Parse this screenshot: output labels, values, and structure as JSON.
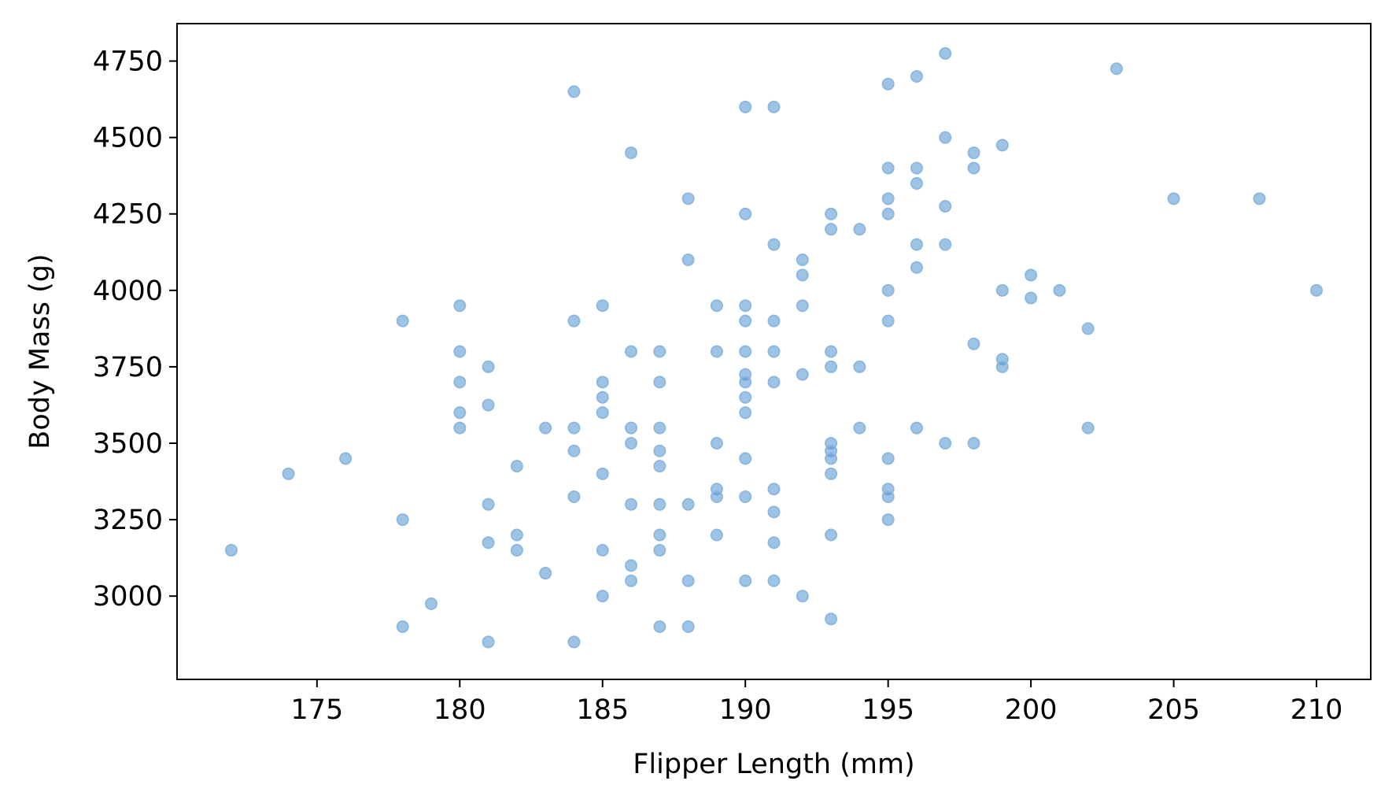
{
  "chart_data": {
    "type": "scatter",
    "title": "",
    "xlabel": "Flipper Length (mm)",
    "ylabel": "Body Mass (g)",
    "xlim": [
      170.1,
      211.9
    ],
    "ylim": [
      2727.5,
      4872.5
    ],
    "xticks": [
      175,
      180,
      185,
      190,
      195,
      200,
      205,
      210
    ],
    "yticks": [
      3000,
      3250,
      3500,
      3750,
      4000,
      4250,
      4500,
      4750
    ],
    "grid": false,
    "legend": "none",
    "colors": {
      "marker_fill": "#5b9bd5",
      "marker_edge": "#8fb8dd"
    },
    "points": [
      [
        172,
        3150
      ],
      [
        174,
        3400
      ],
      [
        176,
        3450
      ],
      [
        178,
        3900
      ],
      [
        178,
        3250
      ],
      [
        178,
        2900
      ],
      [
        179,
        2975
      ],
      [
        180,
        3950
      ],
      [
        180,
        3800
      ],
      [
        180,
        3700
      ],
      [
        180,
        3600
      ],
      [
        180,
        3550
      ],
      [
        181,
        3750
      ],
      [
        181,
        3625
      ],
      [
        181,
        3300
      ],
      [
        181,
        3175
      ],
      [
        181,
        2850
      ],
      [
        182,
        3425
      ],
      [
        182,
        3200
      ],
      [
        182,
        3150
      ],
      [
        183,
        3550
      ],
      [
        183,
        3075
      ],
      [
        184,
        4650
      ],
      [
        184,
        3900
      ],
      [
        184,
        3550
      ],
      [
        184,
        3475
      ],
      [
        184,
        3325
      ],
      [
        184,
        2850
      ],
      [
        185,
        3950
      ],
      [
        185,
        3700
      ],
      [
        185,
        3650
      ],
      [
        185,
        3600
      ],
      [
        185,
        3400
      ],
      [
        185,
        3150
      ],
      [
        185,
        3000
      ],
      [
        186,
        4450
      ],
      [
        186,
        3800
      ],
      [
        186,
        3550
      ],
      [
        186,
        3500
      ],
      [
        186,
        3300
      ],
      [
        186,
        3100
      ],
      [
        186,
        3050
      ],
      [
        187,
        3800
      ],
      [
        187,
        3700
      ],
      [
        187,
        3550
      ],
      [
        187,
        3475
      ],
      [
        187,
        3425
      ],
      [
        187,
        3300
      ],
      [
        187,
        3200
      ],
      [
        187,
        3150
      ],
      [
        187,
        2900
      ],
      [
        188,
        4300
      ],
      [
        188,
        4100
      ],
      [
        188,
        3300
      ],
      [
        188,
        3050
      ],
      [
        188,
        2900
      ],
      [
        189,
        3950
      ],
      [
        189,
        3800
      ],
      [
        189,
        3500
      ],
      [
        189,
        3350
      ],
      [
        189,
        3325
      ],
      [
        189,
        3200
      ],
      [
        190,
        4600
      ],
      [
        190,
        4250
      ],
      [
        190,
        3950
      ],
      [
        190,
        3900
      ],
      [
        190,
        3800
      ],
      [
        190,
        3725
      ],
      [
        190,
        3700
      ],
      [
        190,
        3650
      ],
      [
        190,
        3600
      ],
      [
        190,
        3450
      ],
      [
        190,
        3325
      ],
      [
        190,
        3050
      ],
      [
        191,
        4600
      ],
      [
        191,
        4150
      ],
      [
        191,
        3900
      ],
      [
        191,
        3800
      ],
      [
        191,
        3700
      ],
      [
        191,
        3350
      ],
      [
        191,
        3275
      ],
      [
        191,
        3175
      ],
      [
        191,
        3050
      ],
      [
        192,
        4100
      ],
      [
        192,
        4050
      ],
      [
        192,
        3950
      ],
      [
        192,
        3725
      ],
      [
        192,
        3000
      ],
      [
        193,
        4250
      ],
      [
        193,
        4200
      ],
      [
        193,
        3800
      ],
      [
        193,
        3750
      ],
      [
        193,
        3500
      ],
      [
        193,
        3475
      ],
      [
        193,
        3450
      ],
      [
        193,
        3400
      ],
      [
        193,
        3200
      ],
      [
        193,
        2925
      ],
      [
        194,
        4200
      ],
      [
        194,
        3750
      ],
      [
        194,
        3550
      ],
      [
        195,
        4675
      ],
      [
        195,
        4400
      ],
      [
        195,
        4300
      ],
      [
        195,
        4250
      ],
      [
        195,
        4000
      ],
      [
        195,
        3900
      ],
      [
        195,
        3450
      ],
      [
        195,
        3350
      ],
      [
        195,
        3325
      ],
      [
        195,
        3250
      ],
      [
        196,
        4700
      ],
      [
        196,
        4400
      ],
      [
        196,
        4350
      ],
      [
        196,
        4150
      ],
      [
        196,
        4075
      ],
      [
        196,
        3550
      ],
      [
        197,
        4775
      ],
      [
        197,
        4500
      ],
      [
        197,
        4275
      ],
      [
        197,
        4150
      ],
      [
        197,
        3500
      ],
      [
        198,
        4450
      ],
      [
        198,
        4400
      ],
      [
        198,
        3825
      ],
      [
        198,
        3500
      ],
      [
        199,
        4475
      ],
      [
        199,
        4000
      ],
      [
        199,
        3775
      ],
      [
        199,
        3750
      ],
      [
        200,
        4050
      ],
      [
        200,
        3975
      ],
      [
        201,
        4000
      ],
      [
        202,
        3875
      ],
      [
        202,
        3550
      ],
      [
        203,
        4725
      ],
      [
        205,
        4300
      ],
      [
        208,
        4300
      ],
      [
        210,
        4000
      ]
    ]
  }
}
